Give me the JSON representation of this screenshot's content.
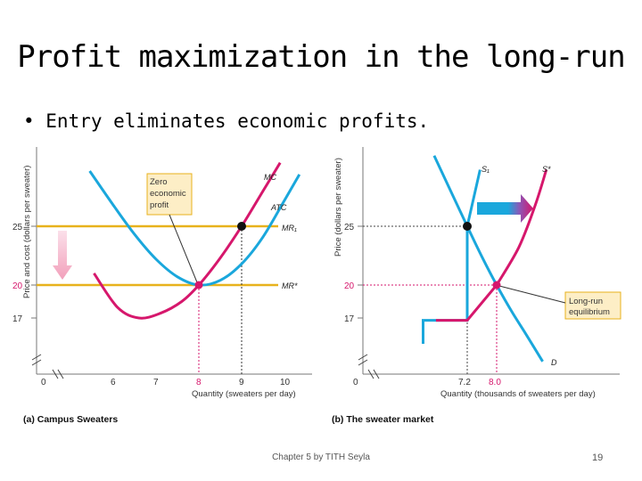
{
  "slide": {
    "title": "Profit maximization in the long-run",
    "bullet": "• Entry eliminates economic profits.",
    "footer": "Chapter 5 by TITH Seyla",
    "page_number": "19"
  },
  "colors": {
    "cyan": "#1aa7dc",
    "magenta": "#d6176c",
    "gold": "#e8b21c",
    "pink_arrow": "#f2a8c0"
  },
  "chart_data": [
    {
      "type": "line",
      "caption": "(a) Campus Sweaters",
      "xlabel": "Quantity (sweaters per day)",
      "ylabel": "Price and cost (dollars per sweater)",
      "x_ticks": [
        "0",
        "6",
        "7",
        "8",
        "9",
        "10"
      ],
      "y_ticks": [
        "17",
        "20",
        "25"
      ],
      "xlim": [
        5,
        10.5
      ],
      "ylim": [
        15,
        31
      ],
      "series": [
        {
          "name": "MC",
          "points": [
            [
              5.55,
              21
            ],
            [
              6.1,
              18.1
            ],
            [
              6.6,
              17.2
            ],
            [
              7.1,
              17.6
            ],
            [
              7.6,
              18.6
            ],
            [
              8.0,
              20
            ],
            [
              8.5,
              22.3
            ],
            [
              9.0,
              25
            ],
            [
              9.5,
              28
            ],
            [
              9.9,
              30.4
            ]
          ]
        },
        {
          "name": "ATC",
          "points": [
            [
              5.45,
              29.7
            ],
            [
              6.0,
              26.8
            ],
            [
              6.5,
              24.3
            ],
            [
              7.0,
              22.2
            ],
            [
              7.5,
              20.7
            ],
            [
              8.0,
              20
            ],
            [
              8.5,
              20.4
            ],
            [
              9.0,
              21.8
            ],
            [
              9.5,
              24.1
            ],
            [
              10.0,
              27.2
            ],
            [
              10.35,
              29.4
            ]
          ]
        },
        {
          "name": "MR1",
          "y": 25
        },
        {
          "name": "MR*",
          "y": 20
        }
      ],
      "curve_labels": {
        "mc": "MC",
        "atc": "ATC",
        "mr1": "MR₁",
        "mrstar": "MR*"
      },
      "points": [
        {
          "x": 8,
          "y": 20,
          "style": "magenta"
        },
        {
          "x": 9,
          "y": 25,
          "style": "black"
        }
      ],
      "dashed_x": [
        "8",
        "9"
      ],
      "annotation": [
        "Zero",
        "economic",
        "profit"
      ],
      "tick_highlight": {
        "x_8": "magenta",
        "y_20": "magenta"
      }
    },
    {
      "type": "line",
      "caption": "(b) The sweater market",
      "xlabel": "Quantity (thousands of sweaters per day)",
      "ylabel": "Price (dollars per sweater)",
      "x_ticks": [
        "0",
        "7.2",
        "8.0"
      ],
      "y_ticks": [
        "17",
        "20",
        "25"
      ],
      "xlim": [
        5.6,
        9.8
      ],
      "ylim": [
        15,
        31
      ],
      "series": [
        {
          "name": "D",
          "points": [
            [
              6.3,
              31
            ],
            [
              7.2,
              25
            ],
            [
              7.6,
              22.4
            ],
            [
              8.0,
              20
            ],
            [
              8.4,
              17.8
            ],
            [
              8.8,
              15.8
            ],
            [
              9.25,
              13.5
            ]
          ]
        },
        {
          "name": "S1",
          "points": [
            [
              6.0,
              15
            ],
            [
              6.0,
              17
            ],
            [
              7.2,
              17
            ],
            [
              7.2,
              25
            ],
            [
              7.55,
              29.8
            ]
          ]
        },
        {
          "name": "S*",
          "points": [
            [
              6.35,
              17
            ],
            [
              7.2,
              17
            ],
            [
              8.0,
              20
            ],
            [
              8.6,
              23.2
            ],
            [
              9.05,
              26.8
            ],
            [
              9.35,
              29.8
            ]
          ]
        }
      ],
      "curve_labels": {
        "d": "D",
        "s1": "S₁",
        "sstar": "S*"
      },
      "points": [
        {
          "x": 7.2,
          "y": 25,
          "style": "black"
        },
        {
          "x": 8.0,
          "y": 20,
          "style": "magenta"
        }
      ],
      "annotation": [
        "Long-run",
        "equilibrium"
      ],
      "tick_highlight": {
        "x_8.0": "magenta",
        "y_20": "magenta"
      }
    }
  ]
}
